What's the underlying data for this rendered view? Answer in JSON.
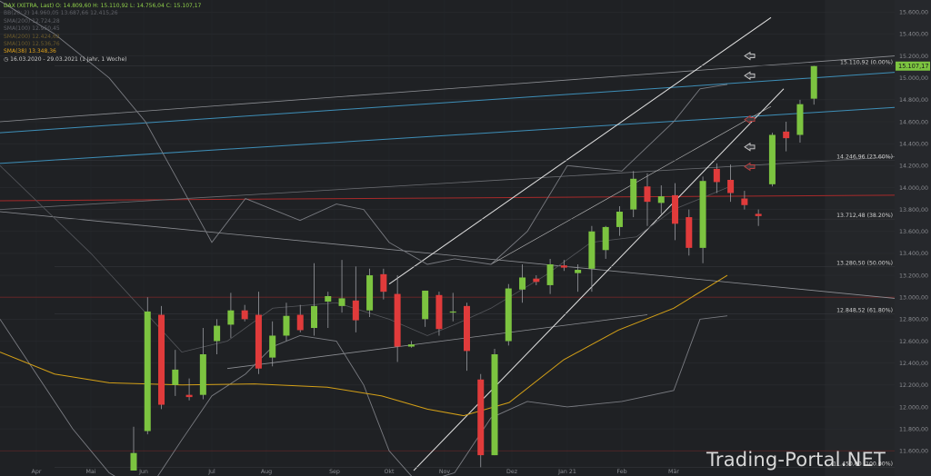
{
  "header": {
    "symbol_line": "DAX (XETRA, Last)  O: 14.809,60  H: 15.110,92  L: 14.756,04  C: 15.107,17",
    "bb_line": "BB(20; 2)  14.960,05  13.687,66  12.415,26",
    "sma_lines_dim": [
      "SMA(200)  12.724,28",
      "SMA(100)  12.950,45"
    ],
    "sma_lines_orange_dim": [
      "SMA(200)  12.424,62",
      "SMA(100)  12.536,76"
    ],
    "sma38_line": "SMA(38)  13.348,36",
    "date_range": "16.03.2020 - 29.03.2021  (1 Jahr, 1 Woche)"
  },
  "watermark": "Trading-Portal.NET",
  "colors": {
    "up": "#7cc440",
    "down": "#e03b3b",
    "bg": "#1f2124",
    "sma38": "#d4a017"
  },
  "chart_data": {
    "type": "candlestick",
    "timeframe": "weekly",
    "y_ticks": [
      11600,
      11800,
      12000,
      12200,
      12400,
      12600,
      12800,
      13000,
      13200,
      13400,
      13600,
      13800,
      14000,
      14200,
      14400,
      14600,
      14800,
      15000,
      15200,
      15400,
      15600
    ],
    "y_tick_labels": [
      "11.600,00",
      "11.800,00",
      "12.000,00",
      "12.200,00",
      "12.400,00",
      "12.600,00",
      "12.800,00",
      "13.000,00",
      "13.200,00",
      "13.400,00",
      "13.600,00",
      "13.800,00",
      "14.000,00",
      "14.200,00",
      "14.400,00",
      "14.600,00",
      "14.800,00",
      "15.000,00",
      "15.200,00",
      "15.400,00",
      "15.600,00"
    ],
    "ylim": [
      11420,
      15660
    ],
    "x_labels": [
      "Apr",
      "Mai",
      "Jun",
      "Jul",
      "Aug",
      "Sep",
      "Okt",
      "Nov",
      "Dez",
      "Jan 21",
      "Feb",
      "Mär"
    ],
    "last_price_label": "15.107,17",
    "last_price": 15107.17,
    "fib_levels": [
      {
        "label": "15.110,92 (0.00%)",
        "value": 15110.92
      },
      {
        "label": "14.246,96 (23.60%)",
        "value": 14246.96
      },
      {
        "label": "13.712,48 (38.20%)",
        "value": 13712.48
      },
      {
        "label": "13.280,50 (50.00%)",
        "value": 13280.5
      },
      {
        "label": "12.848,52 (61.80%)",
        "value": 12848.52
      },
      {
        "label": "11.450,00 (100.00%)",
        "value": 11450.0
      }
    ],
    "candles": [
      {
        "o": 11420,
        "h": 11820,
        "l": 11420,
        "c": 11580
      },
      {
        "o": 11780,
        "h": 13000,
        "l": 11750,
        "c": 12870
      },
      {
        "o": 12840,
        "h": 12920,
        "l": 11980,
        "c": 12020
      },
      {
        "o": 12200,
        "h": 12520,
        "l": 12100,
        "c": 12340
      },
      {
        "o": 12110,
        "h": 12260,
        "l": 12060,
        "c": 12090
      },
      {
        "o": 12110,
        "h": 12720,
        "l": 12070,
        "c": 12480
      },
      {
        "o": 12600,
        "h": 12800,
        "l": 12480,
        "c": 12740
      },
      {
        "o": 12750,
        "h": 13040,
        "l": 12630,
        "c": 12880
      },
      {
        "o": 12880,
        "h": 12930,
        "l": 12780,
        "c": 12800
      },
      {
        "o": 12840,
        "h": 13050,
        "l": 12300,
        "c": 12350
      },
      {
        "o": 12450,
        "h": 12780,
        "l": 12370,
        "c": 12650
      },
      {
        "o": 12650,
        "h": 12950,
        "l": 12600,
        "c": 12830
      },
      {
        "o": 12840,
        "h": 12930,
        "l": 12680,
        "c": 12700
      },
      {
        "o": 12720,
        "h": 13310,
        "l": 12650,
        "c": 12920
      },
      {
        "o": 12960,
        "h": 13050,
        "l": 12720,
        "c": 13010
      },
      {
        "o": 12920,
        "h": 13340,
        "l": 12860,
        "c": 12990
      },
      {
        "o": 12970,
        "h": 13280,
        "l": 12680,
        "c": 12790
      },
      {
        "o": 12880,
        "h": 13260,
        "l": 12820,
        "c": 13200
      },
      {
        "o": 13210,
        "h": 13260,
        "l": 12980,
        "c": 13050
      },
      {
        "o": 13030,
        "h": 13200,
        "l": 12410,
        "c": 12550
      },
      {
        "o": 12550,
        "h": 12600,
        "l": 12540,
        "c": 12570
      },
      {
        "o": 12800,
        "h": 13060,
        "l": 12730,
        "c": 13060
      },
      {
        "o": 13020,
        "h": 13050,
        "l": 12650,
        "c": 12710
      },
      {
        "o": 12870,
        "h": 13040,
        "l": 12780,
        "c": 12870
      },
      {
        "o": 12920,
        "h": 12950,
        "l": 12330,
        "c": 12510
      },
      {
        "o": 12250,
        "h": 12300,
        "l": 11450,
        "c": 11560
      },
      {
        "o": 11560,
        "h": 12530,
        "l": 11560,
        "c": 12480
      },
      {
        "o": 12600,
        "h": 13120,
        "l": 12560,
        "c": 13080
      },
      {
        "o": 13070,
        "h": 13300,
        "l": 12950,
        "c": 13180
      },
      {
        "o": 13170,
        "h": 13200,
        "l": 13110,
        "c": 13140
      },
      {
        "o": 13110,
        "h": 13350,
        "l": 13030,
        "c": 13300
      },
      {
        "o": 13290,
        "h": 13340,
        "l": 13240,
        "c": 13270
      },
      {
        "o": 13220,
        "h": 13300,
        "l": 13050,
        "c": 13250
      },
      {
        "o": 13260,
        "h": 13650,
        "l": 13050,
        "c": 13600
      },
      {
        "o": 13430,
        "h": 13650,
        "l": 13350,
        "c": 13640
      },
      {
        "o": 13640,
        "h": 13830,
        "l": 13560,
        "c": 13780
      },
      {
        "o": 13800,
        "h": 14150,
        "l": 13730,
        "c": 14080
      },
      {
        "o": 14010,
        "h": 14130,
        "l": 13650,
        "c": 13870
      },
      {
        "o": 13860,
        "h": 14020,
        "l": 13760,
        "c": 13920
      },
      {
        "o": 13930,
        "h": 14040,
        "l": 13520,
        "c": 13670
      },
      {
        "o": 13730,
        "h": 13800,
        "l": 13380,
        "c": 13450
      },
      {
        "o": 13450,
        "h": 14100,
        "l": 13310,
        "c": 14060
      },
      {
        "o": 14170,
        "h": 14220,
        "l": 13950,
        "c": 14050
      },
      {
        "o": 14070,
        "h": 14210,
        "l": 13870,
        "c": 13950
      },
      {
        "o": 13900,
        "h": 13970,
        "l": 13800,
        "c": 13840
      },
      {
        "o": 13760,
        "h": 13800,
        "l": 13650,
        "c": 13740
      },
      {
        "o": 14030,
        "h": 14500,
        "l": 14010,
        "c": 14480
      },
      {
        "o": 14510,
        "h": 14600,
        "l": 14330,
        "c": 14450
      },
      {
        "o": 14480,
        "h": 14800,
        "l": 14410,
        "c": 14760
      },
      {
        "o": 14810,
        "h": 15110,
        "l": 14756,
        "c": 15107
      }
    ]
  }
}
